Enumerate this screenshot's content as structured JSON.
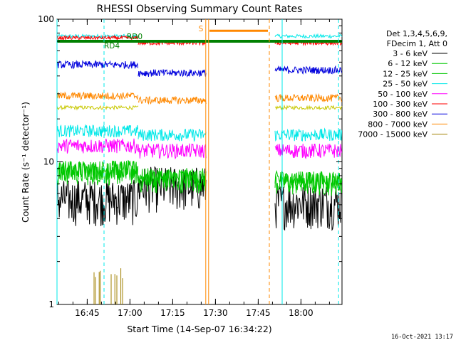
{
  "chart_data": {
    "type": "line",
    "title": "RHESSI Observing Summary Count Rates",
    "xlabel": "Start Time (14-Sep-07 16:34:22)",
    "ylabel": "Count Rate (s⁻¹ detector⁻¹)",
    "yscale": "log",
    "ylim": [
      1,
      100
    ],
    "xlim_minutes": [
      0,
      100
    ],
    "x_ticks": [
      {
        "label": "16:45",
        "minute": 10.6
      },
      {
        "label": "17:00",
        "minute": 25.6
      },
      {
        "label": "17:15",
        "minute": 40.6
      },
      {
        "label": "17:30",
        "minute": 55.6
      },
      {
        "label": "17:45",
        "minute": 70.6
      },
      {
        "label": "18:00",
        "minute": 85.6
      }
    ],
    "y_ticks": [
      {
        "label": "1",
        "value": 1
      },
      {
        "label": "10",
        "value": 10
      },
      {
        "label": "100",
        "value": 100
      }
    ],
    "legend_header": [
      "Det 1,3,4,5,6,9,",
      "FDecim 1, Att 0"
    ],
    "legend_placement": "right",
    "series": [
      {
        "name": "3 - 6 keV",
        "color": "#000000",
        "seg1": 5.5,
        "seg2": 6.8,
        "seg3": 5.2,
        "noise": 0.18
      },
      {
        "name": "6 - 12 keV",
        "color": "#00c800",
        "seg1": 8.5,
        "seg2": 7.5,
        "seg3": 7.2,
        "noise": 0.1
      },
      {
        "name": "12 - 25 keV",
        "color": "#00c800",
        "seg1": 8.8,
        "seg2": 7.8,
        "seg3": 7.4,
        "noise": 0.08
      },
      {
        "name": "25 - 50 keV",
        "color": "#00e8e8",
        "seg1": 16.5,
        "seg2": 15.5,
        "seg3": 15.5,
        "noise": 0.05
      },
      {
        "name": "50 - 100 keV",
        "color": "#ff00ff",
        "seg1": 13,
        "seg2": 12,
        "seg3": 12,
        "noise": 0.06
      },
      {
        "name": "100 - 300 keV",
        "color": "#ff0000",
        "seg1": 74,
        "seg2": 68,
        "seg3": 68,
        "noise": 0.015
      },
      {
        "name": "300 - 800 keV",
        "color": "#0000dd",
        "seg1": 48,
        "seg2": 42,
        "seg3": 44,
        "noise": 0.03
      },
      {
        "name": "800 - 7000 keV",
        "color": "#ff8800",
        "seg1": 29,
        "seg2": 27,
        "seg3": 28,
        "noise": 0.03
      },
      {
        "name": "7000 - 15000 keV",
        "color": "#a08000",
        "seg1": 1,
        "seg2": 1,
        "seg3": 1,
        "noise": 0
      }
    ],
    "extra_series": [
      {
        "color": "#00e8e8",
        "level": 76
      },
      {
        "color": "#c8c800",
        "level": 24
      }
    ],
    "data_segments_minutes": [
      [
        0,
        28.5
      ],
      [
        28.5,
        52.5
      ],
      [
        76.5,
        100
      ]
    ],
    "annotations": [
      {
        "text": "RD4",
        "color": "#008000"
      },
      {
        "text": "RD0",
        "color": "#008000"
      },
      {
        "text": "S",
        "color": "#ff8800"
      }
    ],
    "saa_level": 70,
    "saa_minutes": [
      0,
      100
    ],
    "night_bar_level": 83,
    "night_bar_minutes": [
      53.5,
      74
    ],
    "vlines": [
      {
        "minute": 0,
        "color": "#00e8e8",
        "style": "solid"
      },
      {
        "minute": 16.5,
        "color": "#00e8e8",
        "style": "dashed"
      },
      {
        "minute": 52.2,
        "color": "#ff8800",
        "style": "solid"
      },
      {
        "minute": 53.2,
        "color": "#ff8800",
        "style": "solid"
      },
      {
        "minute": 74.5,
        "color": "#ff8800",
        "style": "dashed"
      },
      {
        "minute": 79,
        "color": "#00e8e8",
        "style": "solid"
      },
      {
        "minute": 98.8,
        "color": "#00e8e8",
        "style": "dashed"
      }
    ],
    "gridlines": false
  },
  "timestamp": "16-Oct-2021 13:17"
}
